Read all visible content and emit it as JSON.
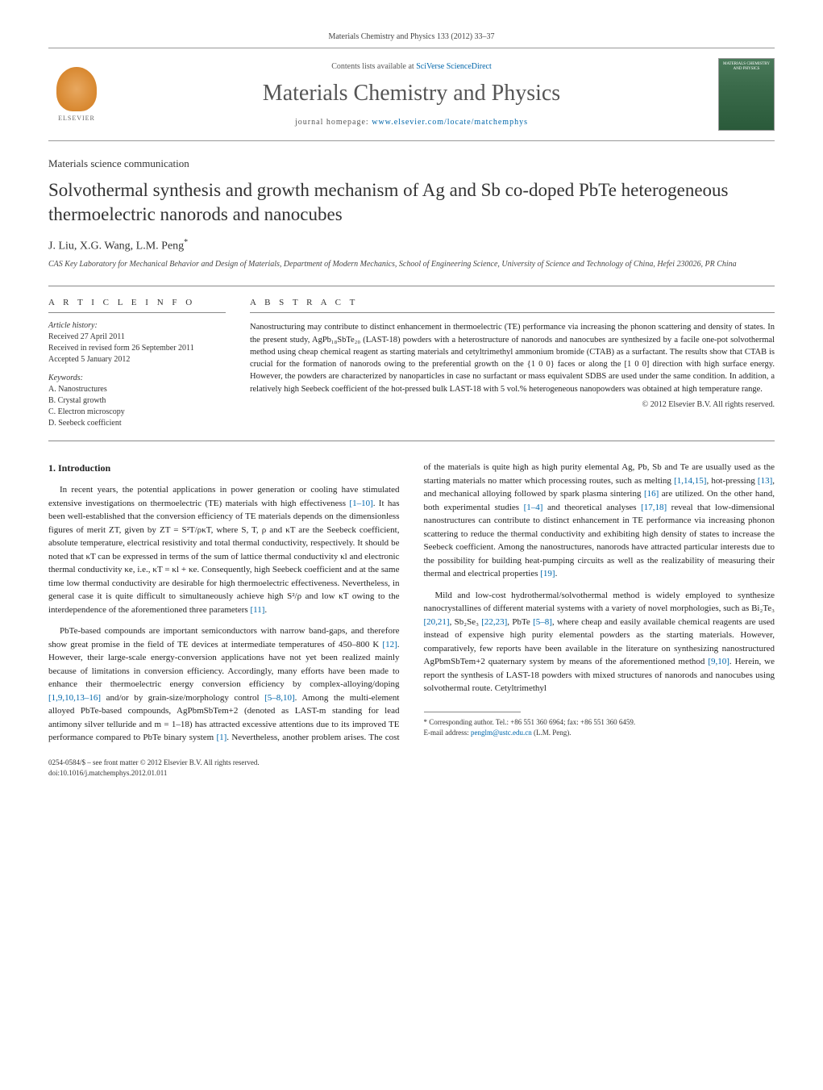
{
  "header": {
    "citation": "Materials Chemistry and Physics 133 (2012) 33–37",
    "contents_prefix": "Contents lists available at ",
    "contents_link_text": "SciVerse ScienceDirect",
    "journal_title": "Materials Chemistry and Physics",
    "homepage_prefix": "journal homepage: ",
    "homepage_url": "www.elsevier.com/locate/matchemphys",
    "elsevier_label": "ELSEVIER",
    "cover_text": "MATERIALS CHEMISTRY AND PHYSICS"
  },
  "article": {
    "section_label": "Materials science communication",
    "title": "Solvothermal synthesis and growth mechanism of Ag and Sb co-doped PbTe heterogeneous thermoelectric nanorods and nanocubes",
    "authors": "J. Liu, X.G. Wang, L.M. Peng",
    "author_marker": "*",
    "affiliation": "CAS Key Laboratory for Mechanical Behavior and Design of Materials, Department of Modern Mechanics, School of Engineering Science, University of Science and Technology of China, Hefei 230026, PR China"
  },
  "info": {
    "heading": "A R T I C L E   I N F O",
    "history_label": "Article history:",
    "received": "Received 27 April 2011",
    "revised": "Received in revised form 26 September 2011",
    "accepted": "Accepted 5 January 2012",
    "keywords_label": "Keywords:",
    "kw1": "A. Nanostructures",
    "kw2": "B. Crystal growth",
    "kw3": "C. Electron microscopy",
    "kw4": "D. Seebeck coefficient"
  },
  "abstract": {
    "heading": "A B S T R A C T",
    "text": "Nanostructuring may contribute to distinct enhancement in thermoelectric (TE) performance via increasing the phonon scattering and density of states. In the present study, AgPb₁₈SbTe₂₀ (LAST-18) powders with a heterostructure of nanorods and nanocubes are synthesized by a facile one-pot solvothermal method using cheap chemical reagent as starting materials and cetyltrimethyl ammonium bromide (CTAB) as a surfactant. The results show that CTAB is crucial for the formation of nanorods owing to the preferential growth on the {1 0 0} faces or along the [1 0 0] direction with high surface energy. However, the powders are characterized by nanoparticles in case no surfactant or mass equivalent SDBS are used under the same condition. In addition, a relatively high Seebeck coefficient of the hot-pressed bulk LAST-18 with 5 vol.% heterogeneous nanopowders was obtained at high temperature range.",
    "copyright": "© 2012 Elsevier B.V. All rights reserved."
  },
  "body": {
    "intro_heading": "1. Introduction",
    "p1_a": "In recent years, the potential applications in power generation or cooling have stimulated extensive investigations on thermoelectric (TE) materials with high effectiveness ",
    "p1_ref1": "[1–10]",
    "p1_b": ". It has been well-established that the conversion efficiency of TE materials depends on the dimensionless figures of merit ZT, given by ZT = S²T/ρκT, where S, T, ρ and κT are the Seebeck coefficient, absolute temperature, electrical resistivity and total thermal conductivity, respectively. It should be noted that κT can be expressed in terms of the sum of lattice thermal conductivity κl and electronic thermal conductivity κe, i.e., κT = κl + κe. Consequently, high Seebeck coefficient and at the same time low thermal conductivity are desirable for high thermoelectric effectiveness. Nevertheless, in general case it is quite difficult to simultaneously achieve high S²/ρ and low κT owing to the interdependence of the aforementioned three parameters ",
    "p1_ref2": "[11]",
    "p1_c": ".",
    "p2_a": "PbTe-based compounds are important semiconductors with narrow band-gaps, and therefore show great promise in the field of TE devices at intermediate temperatures of 450–800 K ",
    "p2_ref1": "[12]",
    "p2_b": ". However, their large-scale energy-conversion applications have not yet been realized mainly because of limitations in conversion efficiency. Accordingly, many efforts have been made to enhance their thermoelectric energy conversion efficiency by complex-alloying/doping ",
    "p2_ref2": "[1,9,10,13–16]",
    "p2_c": " and/or by grain-size/morphology control ",
    "p2_ref3": "[5–8,10]",
    "p2_d": ". Among the multi-element alloyed PbTe-based compounds, AgPbmSbTem+2 (denoted as LAST-m standing for lead antimony silver telluride and m = 1–18) has attracted excessive attentions due to its improved TE performance compared to PbTe binary system ",
    "p2_ref4": "[1]",
    "p2_e": ". Nevertheless, another problem arises. The cost of the materials is quite high as high purity elemental Ag, Pb, Sb and Te are usually used as the starting materials no matter which processing routes, such as melting ",
    "p2_ref5": "[1,14,15]",
    "p2_f": ", hot-pressing ",
    "p2_ref6": "[13]",
    "p2_g": ", and mechanical alloying followed by spark plasma sintering ",
    "p2_ref7": "[16]",
    "p2_h": " are utilized. On the other hand, both experimental studies ",
    "p2_ref8": "[1–4]",
    "p2_i": " and theoretical analyses ",
    "p2_ref9": "[17,18]",
    "p2_j": " reveal that low-dimensional nanostructures can contribute to distinct enhancement in TE performance via increasing phonon scattering to reduce the thermal conductivity and exhibiting high density of states to increase the Seebeck coefficient. Among the nanostructures, nanorods have attracted particular interests due to the possibility for building heat-pumping circuits as well as the realizability of measuring their thermal and electrical properties ",
    "p2_ref10": "[19]",
    "p2_k": ".",
    "p3_a": "Mild and low-cost hydrothermal/solvothermal method is widely employed to synthesize nanocrystallines of different material systems with a variety of novel morphologies, such as Bi₂Te₃ ",
    "p3_ref1": "[20,21]",
    "p3_b": ", Sb₂Se₃ ",
    "p3_ref2": "[22,23]",
    "p3_c": ", PbTe ",
    "p3_ref3": "[5–8]",
    "p3_d": ", where cheap and easily available chemical reagents are used instead of expensive high purity elemental powders as the starting materials. However, comparatively, few reports have been available in the literature on synthesizing nanostructured AgPbmSbTem+2 quaternary system by means of the aforementioned method ",
    "p3_ref4": "[9,10]",
    "p3_e": ". Herein, we report the synthesis of LAST-18 powders with mixed structures of nanorods and nanocubes using solvothermal route. Cetyltrimethyl"
  },
  "footnote": {
    "corr_label": "* Corresponding author. Tel.: +86 551 360 6964; fax: +86 551 360 6459.",
    "email_label": "E-mail address: ",
    "email": "penglm@ustc.edu.cn",
    "email_suffix": " (L.M. Peng)."
  },
  "bottom": {
    "issn_line": "0254-0584/$ – see front matter © 2012 Elsevier B.V. All rights reserved.",
    "doi_line": "doi:10.1016/j.matchemphys.2012.01.011"
  },
  "colors": {
    "link": "#0066aa",
    "text": "#222222",
    "rule": "#888888"
  }
}
